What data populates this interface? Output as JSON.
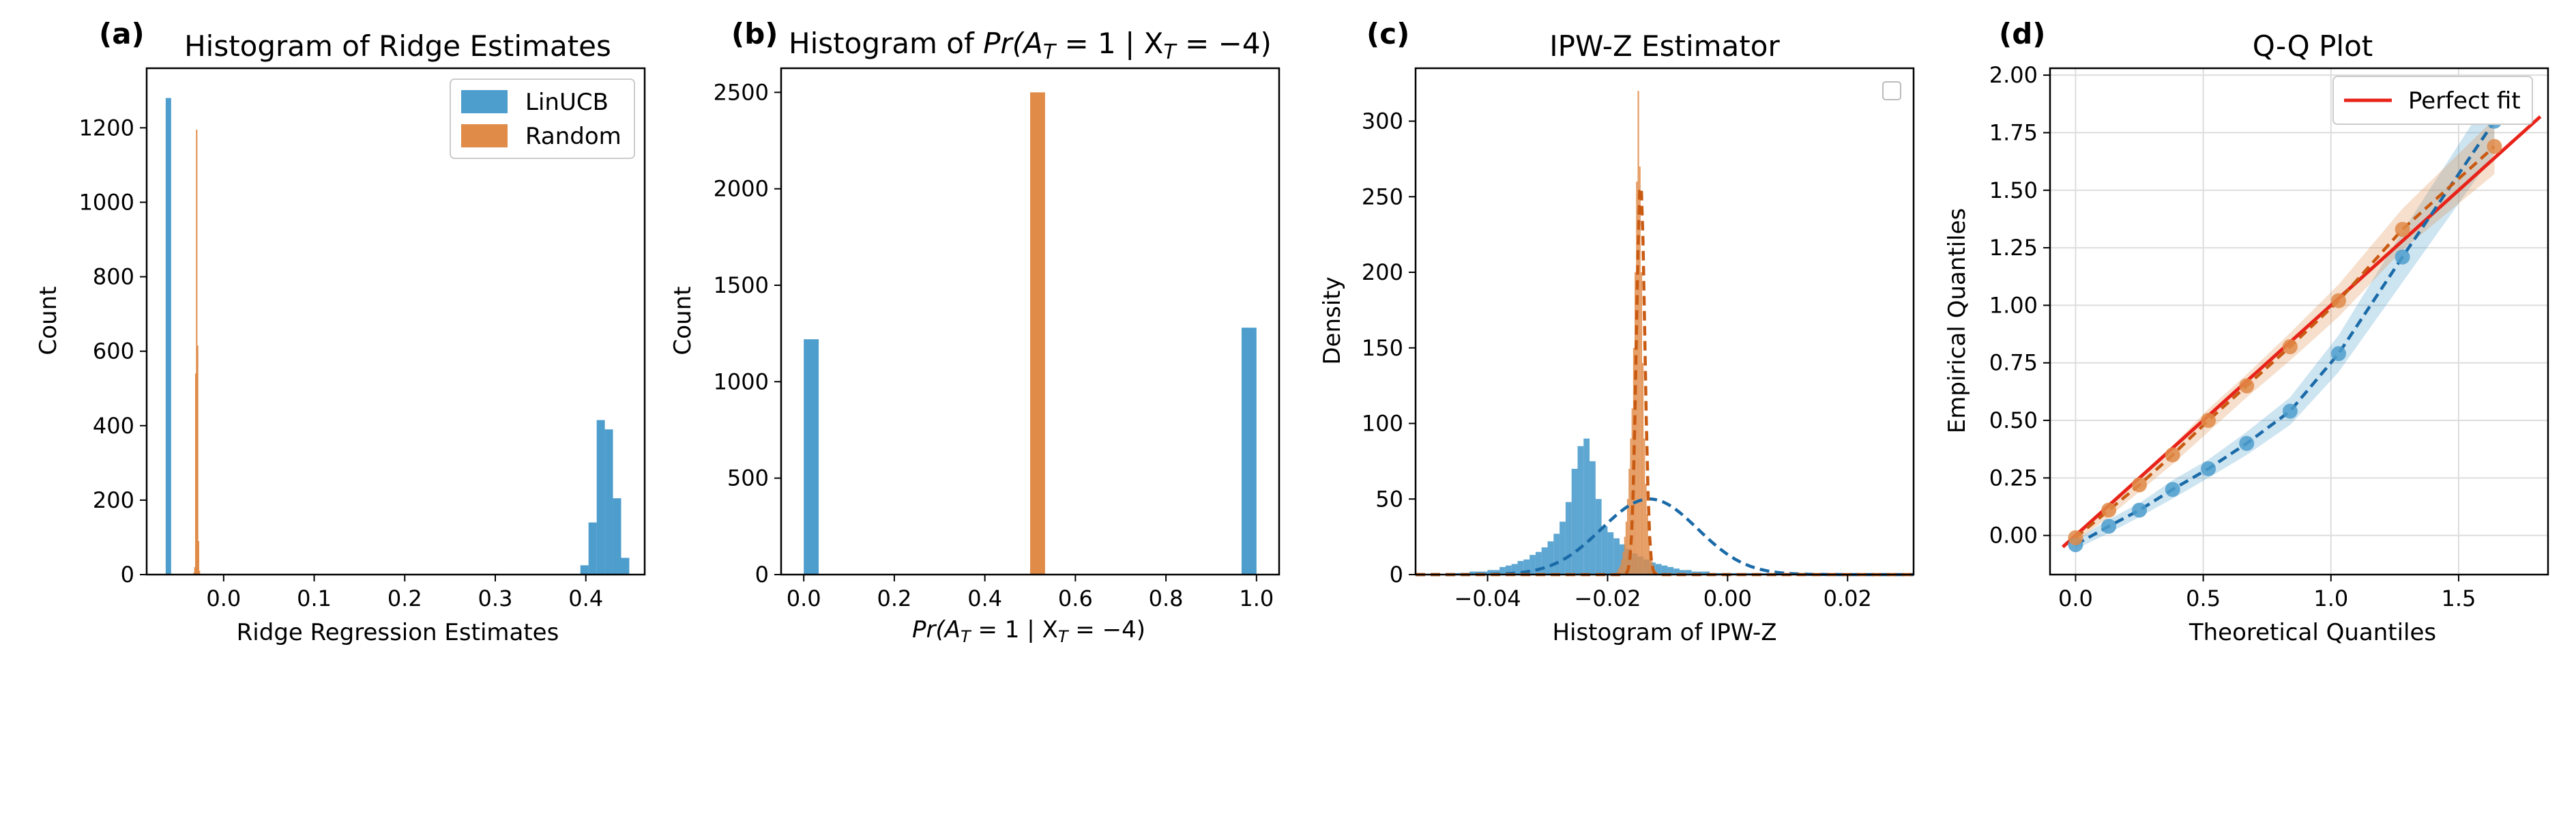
{
  "colors": {
    "linucb": "#4d9dcd",
    "random": "#e08b48",
    "fit": "#e8231a",
    "grid": "#dddddd"
  },
  "chart_data": [
    {
      "type": "bar",
      "panel": "(a)",
      "title": "Histogram of Ridge Estimates",
      "xlabel": "Ridge Regression Estimates",
      "ylabel": "Count",
      "xlim": [
        -0.085,
        0.465
      ],
      "ylim": [
        0,
        1360
      ],
      "xticks": [
        0.0,
        0.1,
        0.2,
        0.3,
        0.4
      ],
      "xticklabels": [
        "0.0",
        "0.1",
        "0.2",
        "0.3",
        "0.4"
      ],
      "yticks": [
        0,
        200,
        400,
        600,
        800,
        1000,
        1200
      ],
      "yticklabels": [
        "0",
        "200",
        "400",
        "600",
        "800",
        "1000",
        "1200"
      ],
      "legend": {
        "placement": "top-right",
        "entries": [
          "LinUCB",
          "Random"
        ]
      },
      "series": [
        {
          "name": "LinUCB",
          "bins": [
            {
              "x0": -0.064,
              "x1": -0.058,
              "count": 1280
            },
            {
              "x0": 0.394,
              "x1": 0.403,
              "count": 25
            },
            {
              "x0": 0.403,
              "x1": 0.412,
              "count": 140
            },
            {
              "x0": 0.412,
              "x1": 0.421,
              "count": 415
            },
            {
              "x0": 0.421,
              "x1": 0.43,
              "count": 390
            },
            {
              "x0": 0.43,
              "x1": 0.439,
              "count": 205
            },
            {
              "x0": 0.439,
              "x1": 0.448,
              "count": 45
            }
          ]
        },
        {
          "name": "Random",
          "bins": [
            {
              "x0": -0.0335,
              "x1": -0.0325,
              "count": 5
            },
            {
              "x0": -0.0325,
              "x1": -0.0315,
              "count": 20
            },
            {
              "x0": -0.0315,
              "x1": -0.0305,
              "count": 540
            },
            {
              "x0": -0.0305,
              "x1": -0.0295,
              "count": 1195
            },
            {
              "x0": -0.0295,
              "x1": -0.0285,
              "count": 615
            },
            {
              "x0": -0.0285,
              "x1": -0.0275,
              "count": 90
            },
            {
              "x0": -0.0275,
              "x1": -0.0265,
              "count": 10
            }
          ]
        }
      ]
    },
    {
      "type": "bar",
      "panel": "(b)",
      "title_prefix": "Histogram of ",
      "math_label": [
        "Pr(A",
        "T",
        " = 1 | X",
        "T",
        " = −4)"
      ],
      "ylabel": "Count",
      "xlim": [
        -0.05,
        1.05
      ],
      "ylim": [
        0,
        2625
      ],
      "xticks": [
        0.0,
        0.2,
        0.4,
        0.6,
        0.8,
        1.0
      ],
      "xticklabels": [
        "0.0",
        "0.2",
        "0.4",
        "0.6",
        "0.8",
        "1.0"
      ],
      "yticks": [
        0,
        500,
        1000,
        1500,
        2000,
        2500
      ],
      "yticklabels": [
        "0",
        "500",
        "1000",
        "1500",
        "2000",
        "2500"
      ],
      "series": [
        {
          "name": "LinUCB",
          "bins": [
            {
              "x0": 0.0,
              "x1": 0.033,
              "count": 1220
            },
            {
              "x0": 0.967,
              "x1": 1.0,
              "count": 1280
            }
          ]
        },
        {
          "name": "Random",
          "bins": [
            {
              "x0": 0.5,
              "x1": 0.533,
              "count": 2500
            }
          ]
        }
      ]
    },
    {
      "type": "bar",
      "panel": "(c)",
      "title": "IPW-Z Estimator",
      "xlabel": "Histogram of IPW-Z",
      "ylabel": "Density",
      "xlim": [
        -0.052,
        0.031
      ],
      "ylim": [
        0,
        335
      ],
      "xticks": [
        -0.04,
        -0.02,
        0.0,
        0.02
      ],
      "xticklabels": [
        "−0.04",
        "−0.02",
        "0.00",
        "0.02"
      ],
      "yticks": [
        0,
        50,
        100,
        150,
        200,
        250,
        300
      ],
      "yticklabels": [
        "0",
        "50",
        "100",
        "150",
        "200",
        "250",
        "300"
      ],
      "legend": {
        "placement": "top-right",
        "entries": []
      },
      "series": [
        {
          "name": "LinUCB",
          "hist_start": -0.046,
          "bin_width": 0.001,
          "density": [
            1,
            1,
            1,
            2,
            2,
            2,
            3,
            3,
            5,
            6,
            7,
            9,
            10,
            13,
            15,
            18,
            22,
            27,
            35,
            48,
            70,
            85,
            90,
            75,
            50,
            32,
            28,
            24,
            20,
            17,
            14,
            12,
            10,
            8,
            7,
            6,
            5,
            4,
            3,
            3,
            2,
            2,
            2,
            1,
            1,
            1,
            1,
            1,
            1,
            1,
            1,
            1,
            1,
            1,
            1,
            1,
            1,
            1,
            1,
            1
          ],
          "fit_mean": -0.013,
          "fit_sd": 0.008,
          "fit_peak": 50
        },
        {
          "name": "Random",
          "hist_start": -0.0185,
          "bin_width": 0.00025,
          "density": [
            2,
            4,
            6,
            10,
            15,
            25,
            35,
            50,
            70,
            90,
            110,
            150,
            200,
            260,
            320,
            270,
            200,
            140,
            90,
            60,
            40,
            25,
            15,
            9,
            6,
            3,
            2,
            1
          ],
          "fit_mean": -0.0145,
          "fit_sd": 0.0007,
          "fit_peak": 260
        }
      ]
    },
    {
      "type": "scatter",
      "panel": "(d)",
      "title": "Q-Q Plot",
      "xlabel": "Theoretical Quantiles",
      "ylabel": "Empirical Quantiles",
      "xlim": [
        -0.1,
        1.85
      ],
      "ylim": [
        -0.17,
        2.03
      ],
      "xticks": [
        0.0,
        0.5,
        1.0,
        1.5
      ],
      "xticklabels": [
        "0.0",
        "0.5",
        "1.0",
        "1.5"
      ],
      "yticks": [
        0.0,
        0.25,
        0.5,
        0.75,
        1.0,
        1.25,
        1.5,
        1.75,
        2.0
      ],
      "yticklabels": [
        "0.00",
        "0.25",
        "0.50",
        "0.75",
        "1.00",
        "1.25",
        "1.50",
        "1.75",
        "2.00"
      ],
      "grid": true,
      "legend": {
        "placement": "top-right",
        "entries": [
          "Perfect fit"
        ]
      },
      "fit_line": {
        "x": [
          -0.05,
          1.82
        ],
        "y": [
          -0.05,
          1.82
        ]
      },
      "series": [
        {
          "name": "LinUCB",
          "x": [
            0.0,
            0.13,
            0.25,
            0.38,
            0.52,
            0.67,
            0.84,
            1.03,
            1.28,
            1.64
          ],
          "y": [
            -0.04,
            0.04,
            0.11,
            0.2,
            0.29,
            0.4,
            0.54,
            0.79,
            1.21,
            1.8
          ],
          "band": [
            0.02,
            0.03,
            0.03,
            0.04,
            0.04,
            0.05,
            0.06,
            0.08,
            0.11,
            0.14
          ]
        },
        {
          "name": "Random",
          "x": [
            0.0,
            0.13,
            0.25,
            0.38,
            0.52,
            0.67,
            0.84,
            1.03,
            1.28,
            1.64
          ],
          "y": [
            -0.01,
            0.11,
            0.22,
            0.35,
            0.5,
            0.65,
            0.82,
            1.02,
            1.33,
            1.69
          ],
          "band": [
            0.02,
            0.03,
            0.03,
            0.04,
            0.05,
            0.05,
            0.06,
            0.07,
            0.09,
            0.12
          ]
        }
      ]
    }
  ]
}
